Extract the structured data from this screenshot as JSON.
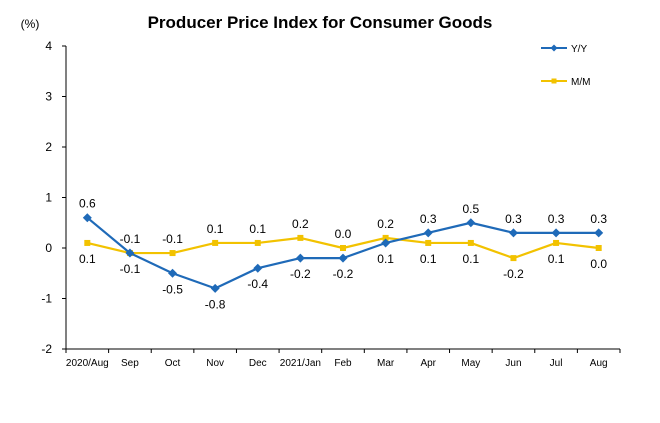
{
  "chart_data": {
    "type": "line",
    "title": "Producer Price Index for Consumer Goods",
    "ylabel": "(%)",
    "xlabel": "",
    "ylim": [
      -2,
      4
    ],
    "yticks": [
      "4",
      "3",
      "2",
      "1",
      "0",
      "-1",
      "-2"
    ],
    "grid": false,
    "legend_position": "top-right",
    "categories": [
      "2020/Aug",
      "Sep",
      "Oct",
      "Nov",
      "Dec",
      "2021/Jan",
      "Feb",
      "Mar",
      "Apr",
      "May",
      "Jun",
      "Jul",
      "Aug"
    ],
    "series": [
      {
        "name": "Y/Y",
        "color": "#1f6ab8",
        "marker": "diamond",
        "values": [
          0.6,
          -0.1,
          -0.5,
          -0.8,
          -0.4,
          -0.2,
          -0.2,
          0.1,
          0.3,
          0.5,
          0.3,
          0.3,
          0.3
        ],
        "labels": [
          "0.6",
          "-0.1",
          "-0.5",
          "-0.8",
          "-0.4",
          "-0.2",
          "-0.2",
          "0.1",
          "0.3",
          "0.5",
          "0.3",
          "0.3",
          "0.3"
        ]
      },
      {
        "name": "M/M",
        "color": "#f2c200",
        "marker": "square",
        "values": [
          0.1,
          -0.1,
          -0.1,
          0.1,
          0.1,
          0.2,
          0.0,
          0.2,
          0.1,
          0.1,
          -0.2,
          0.1,
          0.0
        ],
        "labels": [
          "0.1",
          "-0.1",
          "-0.1",
          "0.1",
          "0.1",
          "0.2",
          "0.0",
          "0.2",
          "0.1",
          "0.1",
          "-0.2",
          "0.1",
          "0.0"
        ]
      }
    ]
  }
}
